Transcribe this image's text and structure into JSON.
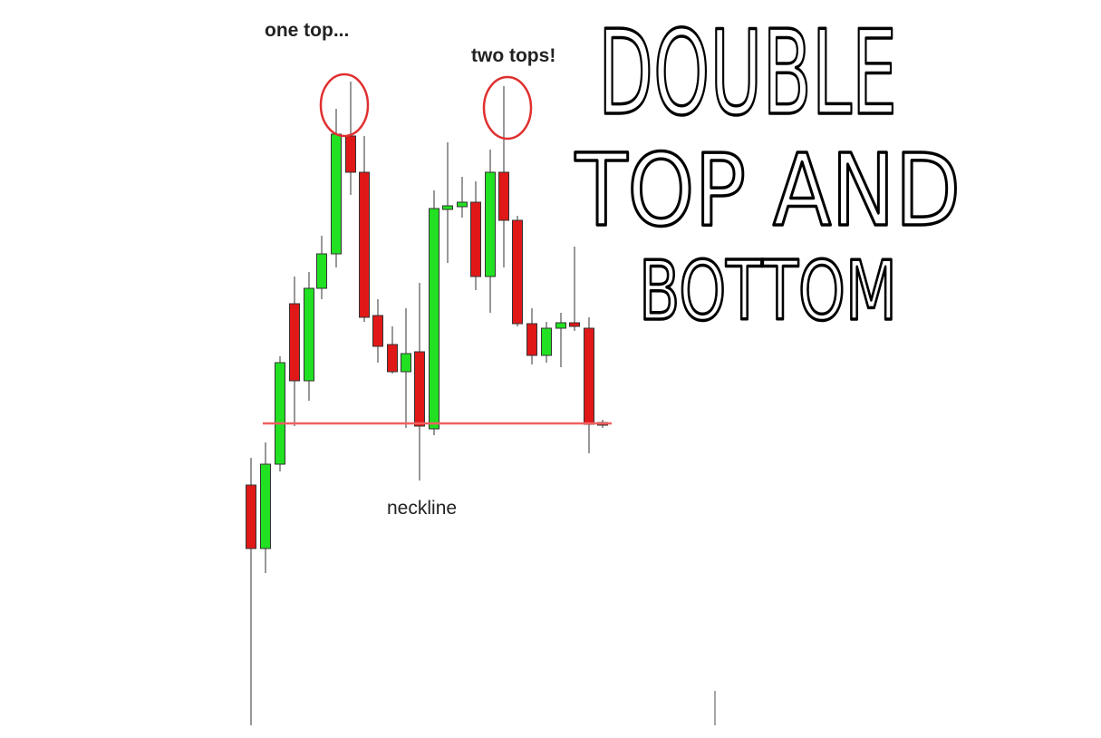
{
  "annotations": {
    "first_top": "one top...",
    "second_top": "two tops!",
    "neckline": "neckline"
  },
  "heading": {
    "lines": [
      "DOUBLE",
      "TOP AND",
      "BOTTOM"
    ]
  }
}
